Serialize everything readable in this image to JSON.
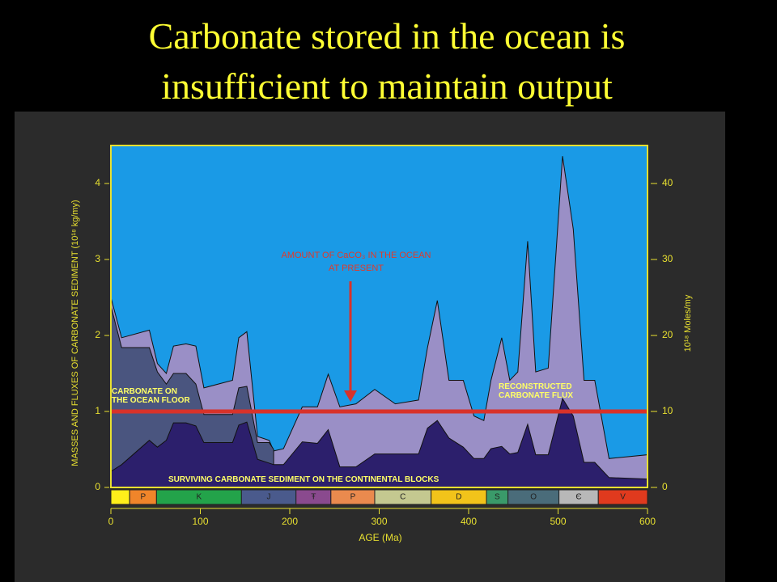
{
  "chart_data": {
    "type": "area",
    "title_lines": [
      "Carbonate stored in the ocean is",
      "insufficient to maintain output"
    ],
    "x_label": "AGE (Ma)",
    "y_label": "MASSES AND FLUXES OF CARBONATE SEDIMENT (10¹⁸ kg/my)",
    "y2_label": "10¹⁸ Moles/my",
    "x": [
      0,
      12,
      43,
      52,
      62,
      70,
      84,
      95,
      104,
      136,
      143,
      152,
      164,
      177,
      182,
      193,
      214,
      231,
      243,
      256,
      274,
      295,
      318,
      344,
      354,
      365,
      378,
      394,
      406,
      417,
      425,
      437,
      446,
      455,
      466,
      475,
      489,
      505,
      517,
      529,
      541,
      557,
      600
    ],
    "series": [
      {
        "name": "RECONSTRUCTED CARBONATE FLUX",
        "color": "#9a8fc6",
        "values": [
          2.5,
          1.97,
          2.07,
          1.63,
          1.5,
          1.86,
          1.89,
          1.86,
          1.31,
          1.41,
          1.97,
          2.05,
          0.67,
          0.62,
          0.48,
          0.51,
          1.06,
          1.06,
          1.49,
          1.06,
          1.1,
          1.29,
          1.1,
          1.15,
          1.84,
          2.46,
          1.41,
          1.41,
          0.94,
          0.88,
          1.41,
          1.97,
          1.41,
          1.52,
          3.24,
          1.52,
          1.57,
          4.36,
          3.4,
          1.41,
          1.41,
          0.38,
          0.43
        ]
      },
      {
        "name": "CARBONATE ON THE OCEAN FLOOR",
        "color": "#4a557f",
        "values": [
          2.39,
          1.84,
          1.84,
          1.52,
          1.36,
          1.5,
          1.5,
          1.36,
          0.96,
          0.96,
          1.31,
          1.33,
          0.59,
          0.59,
          0.5,
          null,
          null,
          null,
          null,
          null,
          null,
          null,
          null,
          null,
          null,
          null,
          null,
          null,
          null,
          null,
          null,
          null,
          null,
          null,
          null,
          null,
          null,
          null,
          null,
          null,
          null,
          null,
          null
        ]
      },
      {
        "name": "SURVIVING CARBONATE SEDIMENT ON THE CONTINENTAL BLOCKS",
        "color": "#2c1f6c",
        "values": [
          0.21,
          0.3,
          0.62,
          0.53,
          0.62,
          0.85,
          0.85,
          0.81,
          0.59,
          0.59,
          0.82,
          0.86,
          0.37,
          0.32,
          0.3,
          0.3,
          0.6,
          0.58,
          0.76,
          0.27,
          0.27,
          0.44,
          0.44,
          0.44,
          0.78,
          0.88,
          0.65,
          0.53,
          0.38,
          0.38,
          0.51,
          0.54,
          0.44,
          0.46,
          0.83,
          0.43,
          0.43,
          1.17,
          0.94,
          0.33,
          0.33,
          0.13,
          0.11
        ]
      }
    ],
    "xlim": [
      0,
      600
    ],
    "xticks": [
      0,
      100,
      200,
      300,
      400,
      500,
      600
    ],
    "ylim": [
      0,
      4.5
    ],
    "yticks": [
      0,
      1,
      2,
      3,
      4
    ],
    "y2lim": [
      0,
      45
    ],
    "y2ticks": [
      0,
      10,
      20,
      30,
      40
    ],
    "hline": {
      "value": 1,
      "color": "#d8322a"
    },
    "present_label": [
      "AMOUNT OF CaCO₃ IN THE OCEAN",
      "AT PRESENT"
    ],
    "plot_color": "#1a9ae6",
    "periods": [
      {
        "label": null,
        "start": 0,
        "end": 21,
        "color": "#ffef1a"
      },
      {
        "label": "P",
        "start": 21,
        "end": 51,
        "color": "#f0852a"
      },
      {
        "label": "K",
        "start": 51,
        "end": 146,
        "color": "#23a34a"
      },
      {
        "label": "J",
        "start": 146,
        "end": 207,
        "color": "#4a5a8c"
      },
      {
        "label": "Ŧ",
        "start": 207,
        "end": 246,
        "color": "#8a4a8e"
      },
      {
        "label": "P",
        "start": 246,
        "end": 295,
        "color": "#ea8a4e"
      },
      {
        "label": "C",
        "start": 295,
        "end": 358,
        "color": "#c4c890"
      },
      {
        "label": "D",
        "start": 358,
        "end": 420,
        "color": "#f2c31a"
      },
      {
        "label": "S",
        "start": 420,
        "end": 444,
        "color": "#3a9a6a"
      },
      {
        "label": "O",
        "start": 444,
        "end": 501,
        "color": "#4a6c7a"
      },
      {
        "label": "Є",
        "start": 501,
        "end": 545,
        "color": "#b8b8b8"
      },
      {
        "label": "V",
        "start": 545,
        "end": 600,
        "color": "#e03a1e"
      }
    ]
  }
}
